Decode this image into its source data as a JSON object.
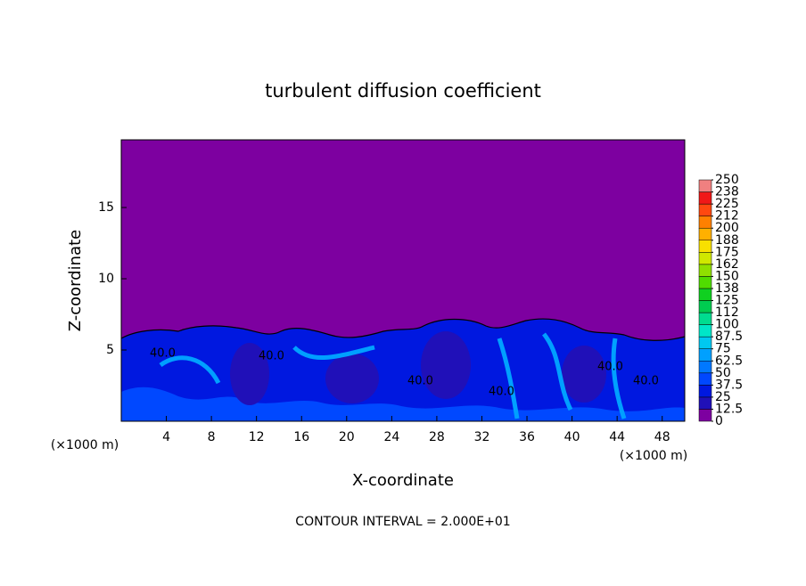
{
  "chart_data": {
    "type": "contour",
    "title": "turbulent diffusion coefficient",
    "xlabel": "X-coordinate",
    "ylabel": "Z-coordinate",
    "x_unit": "(×1000 m)",
    "note": "CONTOUR INTERVAL = 2.000E+01",
    "contour_labels": [
      "40.0",
      "40.0",
      "40.0",
      "40.0",
      "40.0",
      "40.0"
    ],
    "xlim": [
      0,
      50
    ],
    "xticks": [
      4,
      8,
      12,
      16,
      20,
      24,
      28,
      32,
      36,
      40,
      44,
      48
    ],
    "ylim": [
      0,
      20
    ],
    "yticks": [
      5,
      10,
      15
    ],
    "colorbar": {
      "levels": [
        0,
        12.5,
        25,
        37.5,
        50,
        62.5,
        75,
        87.5,
        100,
        {
          "value": 112.5,
          "label": "112"
        },
        {
          "value": 125,
          "label": "125"
        },
        {
          "value": 137.5,
          "label": "138"
        },
        150,
        {
          "value": 162.5,
          "label": "162"
        },
        175,
        {
          "value": 187.5,
          "label": "188"
        },
        200,
        {
          "value": 212.5,
          "label": "212"
        },
        225,
        {
          "value": 237.5,
          "label": "238"
        },
        250
      ],
      "colors": [
        "#7d00a0",
        "#2010b8",
        "#0018e0",
        "#0048ff",
        "#0078ff",
        "#00a0ff",
        "#00c8f0",
        "#00e6c8",
        "#00dc90",
        "#00cc50",
        "#10d020",
        "#50dc00",
        "#90e000",
        "#d0e800",
        "#f8e000",
        "#ffb000",
        "#ff8000",
        "#ff4810",
        "#f01818",
        "#f08080"
      ]
    }
  }
}
